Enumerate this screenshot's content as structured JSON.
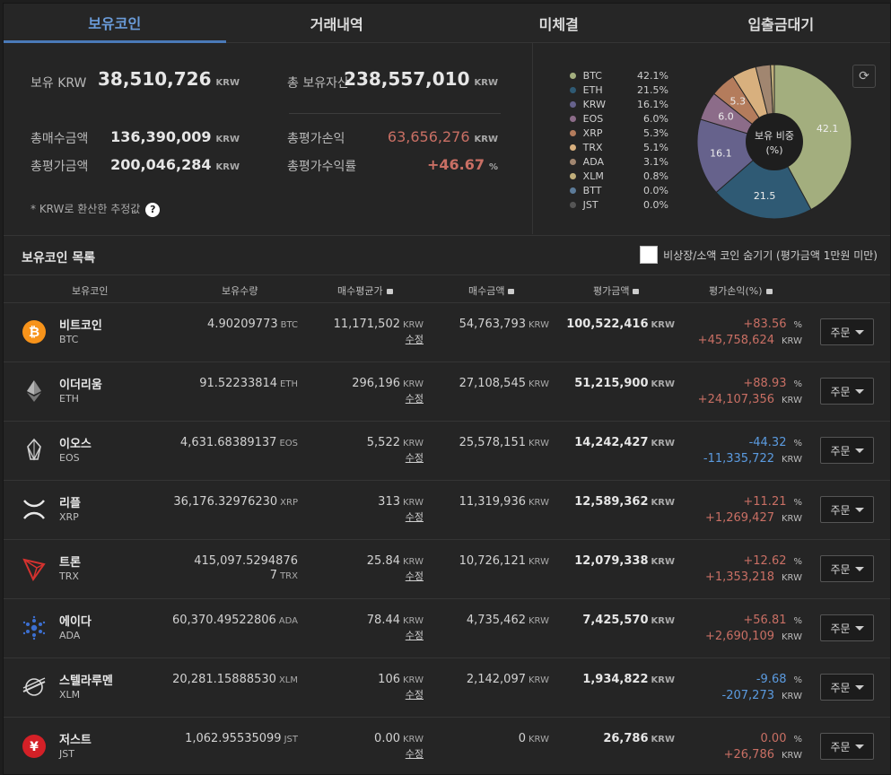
{
  "tabs": [
    "보유코인",
    "거래내역",
    "미체결",
    "입출금대기"
  ],
  "summary": {
    "krw_label": "보유 KRW",
    "krw_value": "38,510,726",
    "unit": "KRW",
    "total_label": "총 보유자산",
    "total_value": "238,557,010",
    "buy_label": "총매수금액",
    "buy_value": "136,390,009",
    "eval_label": "총평가금액",
    "eval_value": "200,046,284",
    "pl_label": "총평가손익",
    "pl_value": "63,656,276",
    "rate_label": "총평가수익률",
    "rate_value": "+46.67",
    "rate_unit": "%",
    "note": "* KRW로 환산한 추정값",
    "help_icon": "?"
  },
  "pie": {
    "center_line1": "보유 비중",
    "center_line2": "(%)",
    "refresh_icon": "⟳",
    "legend": [
      {
        "name": "BTC",
        "pct": "42.1%",
        "color": "#a3ae7e"
      },
      {
        "name": "ETH",
        "pct": "21.5%",
        "color": "#2f5a74"
      },
      {
        "name": "KRW",
        "pct": "16.1%",
        "color": "#66628c"
      },
      {
        "name": "EOS",
        "pct": "6.0%",
        "color": "#8c6c89"
      },
      {
        "name": "XRP",
        "pct": "5.3%",
        "color": "#b47c5c"
      },
      {
        "name": "TRX",
        "pct": "5.1%",
        "color": "#d8b07e"
      },
      {
        "name": "ADA",
        "pct": "3.1%",
        "color": "#a18670"
      },
      {
        "name": "XLM",
        "pct": "0.8%",
        "color": "#c0ae7a"
      },
      {
        "name": "BTT",
        "pct": "0.0%",
        "color": "#5c7b99"
      },
      {
        "name": "JST",
        "pct": "0.0%",
        "color": "#555555"
      }
    ],
    "slices": [
      42.1,
      21.5,
      16.1,
      6.0,
      5.3,
      5.1,
      3.1,
      0.8
    ],
    "labels": [
      "42.1",
      "21.5",
      "16.1",
      "6.0",
      "5.3",
      "",
      "",
      ""
    ]
  },
  "list": {
    "title": "보유코인 목록",
    "hide_label": "비상장/소액 코인 숨기기 (평가금액 1만원 미만)",
    "headers": [
      "보유코인",
      "보유수량",
      "매수평균가",
      "매수금액",
      "평가금액",
      "평가손익(%)"
    ],
    "edit_label": "수정",
    "order_label": "주문",
    "unit": "KRW",
    "pct_unit": "%",
    "coins": [
      {
        "name": "비트코인",
        "sym": "BTC",
        "icon": "bitcoin-icon",
        "qty": "4.90209773",
        "avg": "11,171,502",
        "buy": "54,763,793",
        "eval": "100,522,416",
        "rate": "+83.56",
        "pl": "+45,758,624",
        "dir": "up"
      },
      {
        "name": "이더리움",
        "sym": "ETH",
        "icon": "ethereum-icon",
        "qty": "91.52233814",
        "avg": "296,196",
        "buy": "27,108,545",
        "eval": "51,215,900",
        "rate": "+88.93",
        "pl": "+24,107,356",
        "dir": "up"
      },
      {
        "name": "이오스",
        "sym": "EOS",
        "icon": "eos-icon",
        "qty": "4,631.68389137",
        "avg": "5,522",
        "buy": "25,578,151",
        "eval": "14,242,427",
        "rate": "-44.32",
        "pl": "-11,335,722",
        "dir": "down"
      },
      {
        "name": "리플",
        "sym": "XRP",
        "icon": "ripple-icon",
        "qty": "36,176.32976230",
        "avg": "313",
        "buy": "11,319,936",
        "eval": "12,589,362",
        "rate": "+11.21",
        "pl": "+1,269,427",
        "dir": "up"
      },
      {
        "name": "트론",
        "sym": "TRX",
        "icon": "tron-icon",
        "qty": "415,097.5294876",
        "qty2": "7",
        "avg": "25.84",
        "buy": "10,726,121",
        "eval": "12,079,338",
        "rate": "+12.62",
        "pl": "+1,353,218",
        "dir": "up"
      },
      {
        "name": "에이다",
        "sym": "ADA",
        "icon": "cardano-icon",
        "qty": "60,370.49522806",
        "avg": "78.44",
        "buy": "4,735,462",
        "eval": "7,425,570",
        "rate": "+56.81",
        "pl": "+2,690,109",
        "dir": "up"
      },
      {
        "name": "스텔라루멘",
        "sym": "XLM",
        "icon": "stellar-icon",
        "qty": "20,281.15888530",
        "avg": "106",
        "buy": "2,142,097",
        "eval": "1,934,822",
        "rate": "-9.68",
        "pl": "-207,273",
        "dir": "down"
      },
      {
        "name": "저스트",
        "sym": "JST",
        "icon": "just-icon",
        "qty": "1,062.95535099",
        "avg": "0.00",
        "buy": "0",
        "eval": "26,786",
        "rate": "0.00",
        "pl": "+26,786",
        "dir": "up"
      }
    ]
  }
}
